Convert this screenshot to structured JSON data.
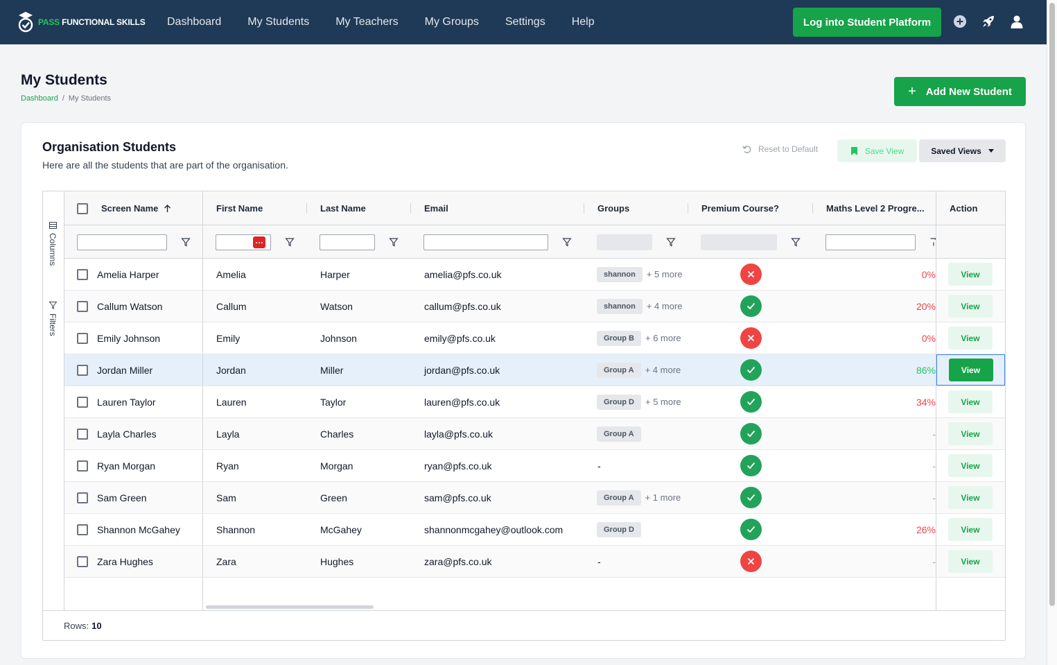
{
  "brand": {
    "prefix": "PASS",
    "name": "FUNCTIONAL SKILLS"
  },
  "nav": {
    "links": [
      "Dashboard",
      "My Students",
      "My Teachers",
      "My Groups",
      "Settings",
      "Help"
    ],
    "login_button": "Log into Student Platform",
    "icons": [
      "plus-circle-icon",
      "rocket-icon",
      "user-icon"
    ]
  },
  "page": {
    "title": "My Students",
    "breadcrumb": {
      "home": "Dashboard",
      "separator": "/",
      "current": "My Students"
    },
    "add_button": "Add New Student"
  },
  "card": {
    "title": "Organisation Students",
    "subtitle": "Here are all the students that are part of the organisation.",
    "reset_label": "Reset to Default",
    "save_view_label": "Save View",
    "saved_views_label": "Saved Views"
  },
  "grid": {
    "side_tabs": {
      "columns": "Columns",
      "filters": "Filters"
    },
    "headers": {
      "screen_name": "Screen Name",
      "first_name": "First Name",
      "last_name": "Last Name",
      "email": "Email",
      "groups": "Groups",
      "premium": "Premium Course?",
      "maths": "Maths Level 2 Progre...",
      "action": "Action"
    },
    "sort": {
      "column": "Screen Name",
      "direction": "ascending"
    },
    "view_label": "View",
    "rows_label": "Rows:",
    "rows_count": "10",
    "rows": [
      {
        "screen_name": "Amelia Harper",
        "first": "Amelia",
        "last": "Harper",
        "email": "amelia@pfs.co.uk",
        "group": "shannon",
        "more": "+ 5 more",
        "premium": false,
        "maths": "0%",
        "selected": false
      },
      {
        "screen_name": "Callum Watson",
        "first": "Callum",
        "last": "Watson",
        "email": "callum@pfs.co.uk",
        "group": "shannon",
        "more": "+ 4 more",
        "premium": true,
        "maths": "20%",
        "selected": false
      },
      {
        "screen_name": "Emily Johnson",
        "first": "Emily",
        "last": "Johnson",
        "email": "emily@pfs.co.uk",
        "group": "Group B",
        "more": "+ 6 more",
        "premium": false,
        "maths": "0%",
        "selected": false
      },
      {
        "screen_name": "Jordan Miller",
        "first": "Jordan",
        "last": "Miller",
        "email": "jordan@pfs.co.uk",
        "group": "Group A",
        "more": "+ 4 more",
        "premium": true,
        "maths": "86%",
        "selected": true
      },
      {
        "screen_name": "Lauren Taylor",
        "first": "Lauren",
        "last": "Taylor",
        "email": "lauren@pfs.co.uk",
        "group": "Group D",
        "more": "+ 5 more",
        "premium": true,
        "maths": "34%",
        "selected": false
      },
      {
        "screen_name": "Layla Charles",
        "first": "Layla",
        "last": "Charles",
        "email": "layla@pfs.co.uk",
        "group": "Group A",
        "more": "",
        "premium": true,
        "maths": "-",
        "selected": false
      },
      {
        "screen_name": "Ryan Morgan",
        "first": "Ryan",
        "last": "Morgan",
        "email": "ryan@pfs.co.uk",
        "group": "-",
        "more": "",
        "premium": true,
        "maths": "-",
        "selected": false
      },
      {
        "screen_name": "Sam Green",
        "first": "Sam",
        "last": "Green",
        "email": "sam@pfs.co.uk",
        "group": "Group A",
        "more": "+ 1 more",
        "premium": true,
        "maths": "-",
        "selected": false
      },
      {
        "screen_name": "Shannon McGahey",
        "first": "Shannon",
        "last": "McGahey",
        "email": "shannonmcgahey@outlook.com",
        "group": "Group D",
        "more": "",
        "premium": true,
        "maths": "26%",
        "selected": false
      },
      {
        "screen_name": "Zara Hughes",
        "first": "Zara",
        "last": "Hughes",
        "email": "zara@pfs.co.uk",
        "group": "-",
        "more": "",
        "premium": false,
        "maths": "-",
        "selected": false
      }
    ]
  },
  "colors": {
    "nav_bg": "#1e3a56",
    "primary": "#16a34a",
    "success": "#22a35a",
    "danger": "#ef4444",
    "low_progress": "#ef4444",
    "high_progress": "#22c55e"
  }
}
